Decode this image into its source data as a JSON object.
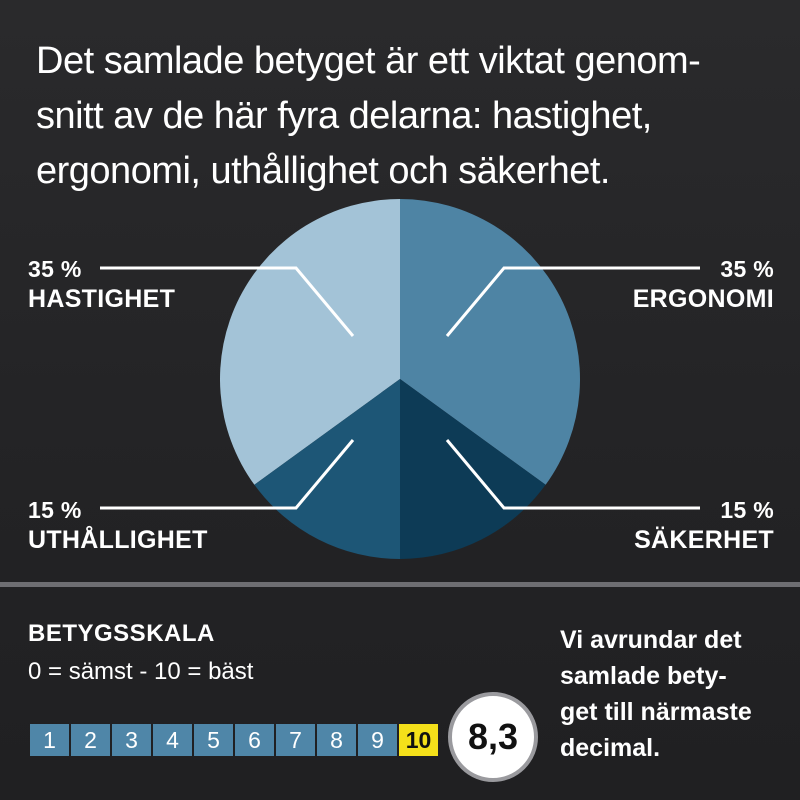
{
  "intro": {
    "line1": "Det samlade betyget är ett viktat genom-",
    "line2": "snitt av de här fyra delarna: hastighet,",
    "line3": "ergonomi, uthållighet och säkerhet."
  },
  "chart_data": {
    "type": "pie",
    "title": "",
    "slices": [
      {
        "pct_label": "35 %",
        "name": "HASTIGHET",
        "value": 35,
        "color": "#a3c3d7"
      },
      {
        "pct_label": "35 %",
        "name": "ERGONOMI",
        "value": 35,
        "color": "#4e84a4"
      },
      {
        "pct_label": "15 %",
        "name": "SÄKERHET",
        "value": 15,
        "color": "#0d3b56"
      },
      {
        "pct_label": "15 %",
        "name": "UTHÅLLIGHET",
        "value": 15,
        "color": "#1d5676"
      }
    ]
  },
  "scale": {
    "title": "BETYGSSKALA",
    "subtitle": "0 = sämst - 10 = bäst",
    "steps": [
      "1",
      "2",
      "3",
      "4",
      "5",
      "6",
      "7",
      "8",
      "9",
      "10"
    ],
    "step_color": "#4f86a8",
    "best_color": "#f4e01a"
  },
  "score": "8,3",
  "note": {
    "line1": "Vi  avrundar det",
    "line2": "samlade bety-",
    "line3": "get till närmaste",
    "line4": "decimal."
  }
}
